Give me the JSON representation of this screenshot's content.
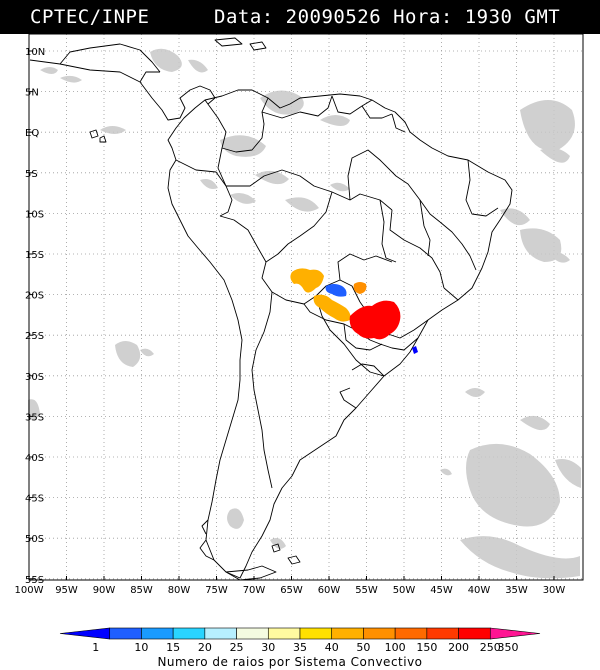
{
  "header": {
    "source": "CPTEC/INPE",
    "datetime": "Data: 20090526 Hora: 1930 GMT"
  },
  "map": {
    "lat_labels": [
      "10N",
      "5N",
      "EQ",
      "5S",
      "10S",
      "15S",
      "20S",
      "25S",
      "30S",
      "35S",
      "40S",
      "45S",
      "50S",
      "55S"
    ],
    "lon_labels": [
      "100W",
      "95W",
      "90W",
      "85W",
      "80W",
      "75W",
      "70W",
      "65W",
      "60W",
      "55W",
      "50W",
      "45W",
      "40W",
      "35W",
      "30W"
    ]
  },
  "legend": {
    "title": "Numero de raios por Sistema Convectivo",
    "values": [
      "1",
      "10",
      "15",
      "20",
      "25",
      "30",
      "35",
      "40",
      "50",
      "100",
      "150",
      "200",
      "250",
      "350"
    ],
    "colors": [
      "#0000ff",
      "#1f5fff",
      "#1a9bff",
      "#2ad4ff",
      "#b7f0ff",
      "#f4fbe0",
      "#fffaa0",
      "#ffe000",
      "#ffb000",
      "#ff9000",
      "#ff6a00",
      "#ff3a00",
      "#ff0000",
      "#ff1493"
    ]
  },
  "convective_systems": [
    {
      "color": "#ffb000"
    },
    {
      "color": "#ffb000"
    },
    {
      "color": "#1f5fff"
    },
    {
      "color": "#ff9000"
    },
    {
      "color": "#ff0000"
    },
    {
      "color": "#0000ff"
    }
  ]
}
